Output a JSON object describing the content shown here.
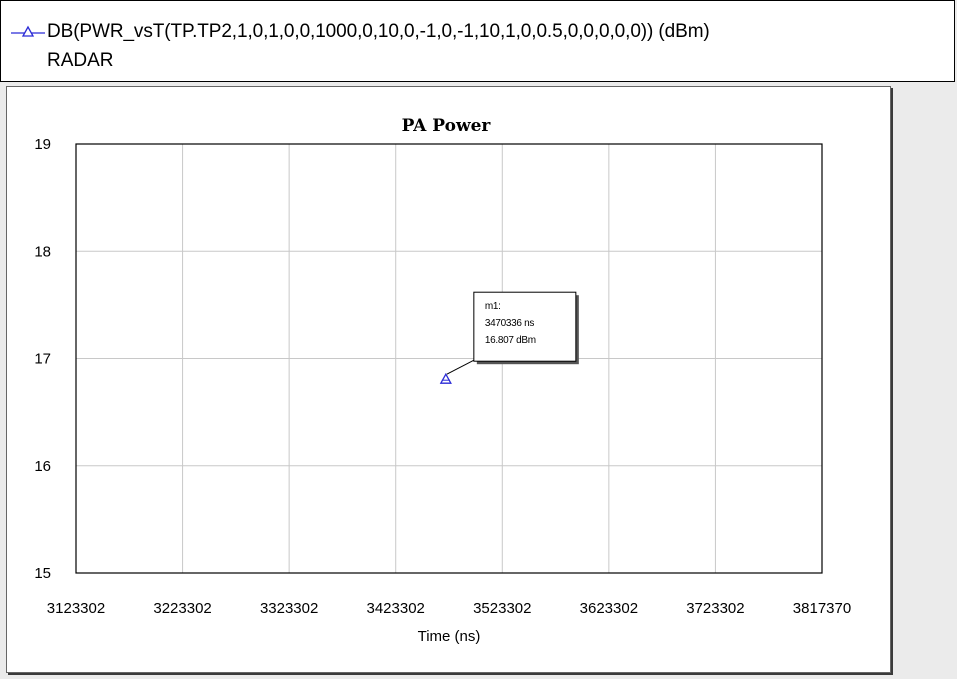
{
  "legend": {
    "expression": "DB(PWR_vsT(TP.TP2,1,0,1,0,0,1000,0,10,0,-1,0,-1,10,1,0,0.5,0,0,0,0,0)) (dBm)",
    "document": "RADAR",
    "swatch_icon": "triangle-marker-line-icon",
    "color": "#2b2bd6"
  },
  "chart_data": {
    "type": "scatter",
    "title": "PA Power",
    "xlabel": "Time (ns)",
    "ylabel": "",
    "xlim": [
      3123302,
      3817370
    ],
    "ylim": [
      15,
      19
    ],
    "x_ticks": [
      3123302,
      3223302,
      3323302,
      3423302,
      3523302,
      3623302,
      3723302,
      3817370
    ],
    "y_ticks": [
      15,
      16,
      17,
      18,
      19
    ],
    "grid": true,
    "series": [
      {
        "name": "",
        "color": "#2b2bd6",
        "x": [
          3470336
        ],
        "y": [
          16.807
        ]
      }
    ],
    "markers": [
      {
        "label": "m1:",
        "x": 3470336,
        "y": 16.807,
        "x_text": "3470336 ns",
        "y_text": "16.807 dBm"
      }
    ]
  }
}
